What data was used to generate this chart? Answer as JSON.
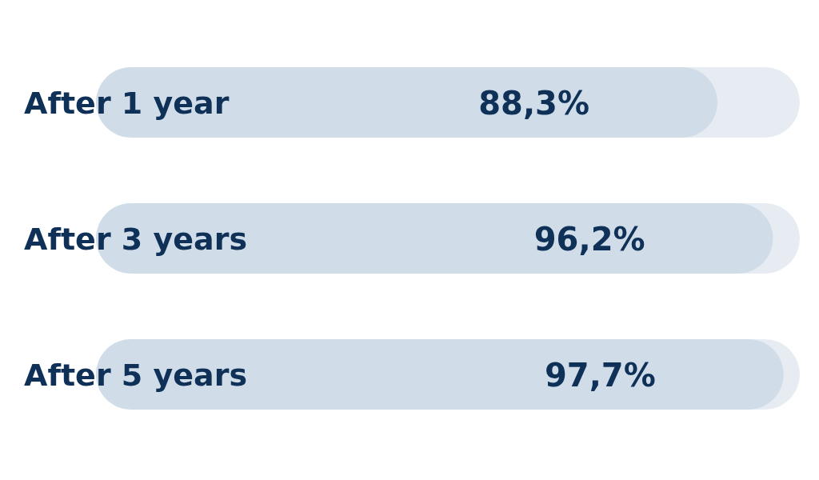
{
  "chart_data": {
    "type": "bar",
    "orientation": "horizontal",
    "categories": [
      "After 1 year",
      "After 3 years",
      "After 5 years"
    ],
    "values": [
      88.3,
      96.2,
      97.7
    ],
    "value_labels": [
      "88,3%",
      "96,2%",
      "97,7%"
    ],
    "color": "#d0dde9",
    "xlim": [
      0,
      100
    ],
    "tick_labels": "y"
  }
}
